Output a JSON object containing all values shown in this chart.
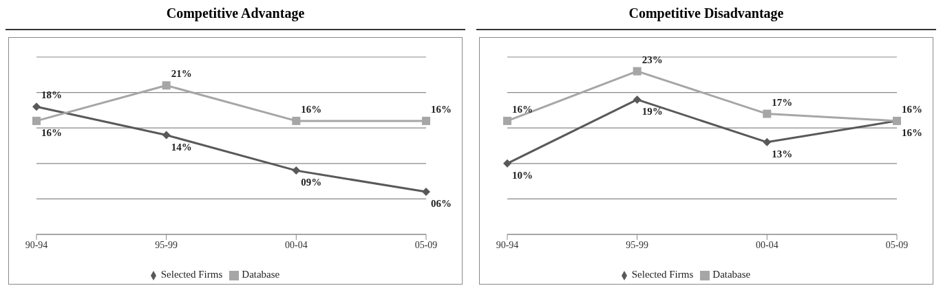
{
  "chart_data": [
    {
      "type": "line",
      "title": "Competitive Advantage",
      "categories": [
        "90-94",
        "95-99",
        "00-04",
        "05-09"
      ],
      "series": [
        {
          "name": "Selected Firms",
          "color": "#595959",
          "marker": "diamond",
          "values": [
            18,
            14,
            9,
            6
          ],
          "value_labels": [
            "18%",
            "14%",
            "09%",
            "06%"
          ]
        },
        {
          "name": "Database",
          "color": "#a6a6a6",
          "marker": "square",
          "values": [
            16,
            21,
            16,
            16
          ],
          "value_labels": [
            "16%",
            "21%",
            "16%",
            "16%"
          ]
        }
      ],
      "ylim": [
        0,
        25
      ],
      "tick_labels": "x",
      "grid": "y",
      "legend": "bottom"
    },
    {
      "type": "line",
      "title": "Competitive Disadvantage",
      "categories": [
        "90-94",
        "95-99",
        "00-04",
        "05-09"
      ],
      "series": [
        {
          "name": "Selected Firms",
          "color": "#595959",
          "marker": "diamond",
          "values": [
            10,
            19,
            13,
            16
          ],
          "value_labels": [
            "10%",
            "19%",
            "13%",
            "16%"
          ]
        },
        {
          "name": "Database",
          "color": "#a6a6a6",
          "marker": "square",
          "values": [
            16,
            23,
            17,
            16
          ],
          "value_labels": [
            "16%",
            "23%",
            "17%",
            "16%"
          ]
        }
      ],
      "ylim": [
        0,
        25
      ],
      "tick_labels": "x",
      "grid": "y",
      "legend": "bottom"
    }
  ]
}
